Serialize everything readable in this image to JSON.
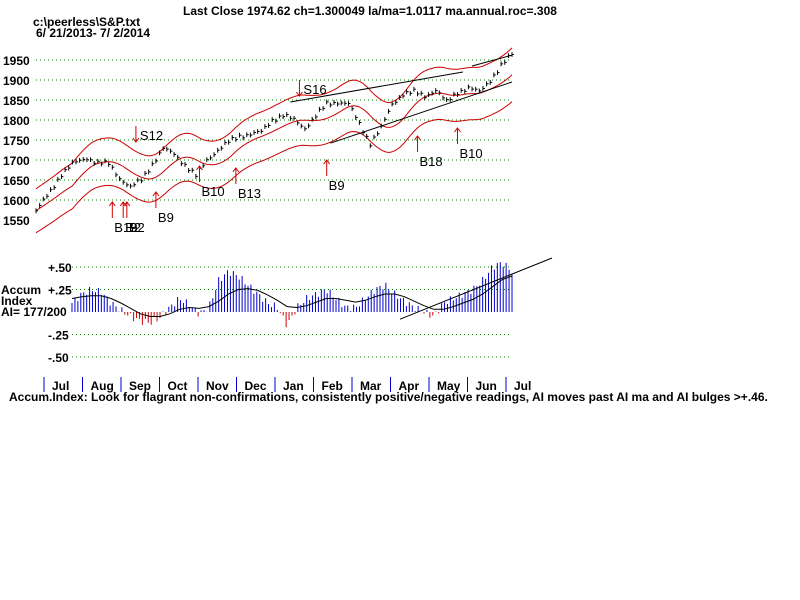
{
  "header": {
    "title": "Last Close 1974.62 ch=1.300049  la/ma=1.0117 ma.annual.roc=.308",
    "file": "c:\\peerless\\S&P.txt",
    "range": "6/ 21/2013- 7/ 2/2014"
  },
  "colors": {
    "price": "#000000",
    "bands": "#cc0000",
    "signal": "#cc0000",
    "ai_bars": "#0000cc",
    "ai_negative": "#cc0000",
    "grid": "#008000"
  },
  "footnote": "Accum.Index: Look for flagrant non-confirmations, consistently positive/negative readings, AI moves past AI ma and AI bulges >+.46.",
  "chart_data": [
    {
      "type": "line",
      "name": "price",
      "y_ticks": [
        "1950",
        "1900",
        "1850",
        "1800",
        "1750",
        "1700",
        "1650",
        "1600",
        "1550"
      ],
      "ylim": [
        1550,
        1980
      ],
      "x": [
        0,
        8,
        14,
        20,
        28,
        34,
        40,
        46,
        52,
        58,
        64,
        70,
        76,
        82,
        88,
        94,
        100,
        106,
        112,
        118,
        124,
        130,
        136,
        142,
        148,
        154,
        160,
        166,
        172,
        178,
        184,
        190,
        196,
        202,
        208,
        214,
        220,
        226,
        232,
        238,
        244,
        250,
        256,
        262
      ],
      "close": [
        1573,
        1622,
        1665,
        1690,
        1705,
        1693,
        1690,
        1655,
        1632,
        1650,
        1690,
        1728,
        1715,
        1688,
        1660,
        1700,
        1725,
        1745,
        1760,
        1765,
        1770,
        1800,
        1812,
        1800,
        1780,
        1810,
        1840,
        1845,
        1840,
        1790,
        1742,
        1780,
        1840,
        1865,
        1870,
        1860,
        1875,
        1845,
        1870,
        1880,
        1870,
        1900,
        1935,
        1965
      ],
      "signals": [
        {
          "label": "S12",
          "x": 55,
          "price": 1745,
          "kind": "sell"
        },
        {
          "label": "S16",
          "x": 145,
          "price": 1860,
          "kind": "sell"
        },
        {
          "label": "B19",
          "x": 42,
          "price": 1595,
          "kind": "buy"
        },
        {
          "label": "B2",
          "x": 48,
          "price": 1595,
          "kind": "buy"
        },
        {
          "label": "B2",
          "x": 50,
          "price": 1595,
          "kind": "buy"
        },
        {
          "label": "B9",
          "x": 66,
          "price": 1620,
          "kind": "buy"
        },
        {
          "label": "B10",
          "x": 90,
          "price": 1685,
          "kind": "buy"
        },
        {
          "label": "B13",
          "x": 110,
          "price": 1680,
          "kind": "buy"
        },
        {
          "label": "B9",
          "x": 160,
          "price": 1700,
          "kind": "buy"
        },
        {
          "label": "B18",
          "x": 210,
          "price": 1760,
          "kind": "buy"
        },
        {
          "label": "B10",
          "x": 232,
          "price": 1780,
          "kind": "buy"
        }
      ]
    },
    {
      "type": "bar",
      "name": "Accum Index",
      "panel_label": [
        "Accum",
        "Index",
        "AI= 177/200"
      ],
      "y_ticks": [
        "+.50",
        "+.25",
        "-.25",
        "-.50"
      ],
      "ylim": [
        -0.55,
        0.55
      ],
      "months": [
        "Jul",
        "Aug",
        "Sep",
        "Oct",
        "Nov",
        "Dec",
        "Jan",
        "Feb",
        "Mar",
        "Apr",
        "May",
        "Jun",
        "Jul"
      ],
      "values": [
        0.1,
        0.2,
        0.25,
        0.22,
        0.1,
        0.02,
        -0.05,
        -0.1,
        -0.12,
        -0.06,
        0.05,
        0.15,
        0.08,
        -0.02,
        0.05,
        0.35,
        0.45,
        0.4,
        0.3,
        0.2,
        0.1,
        0.05,
        -0.15,
        0.05,
        0.15,
        0.2,
        0.25,
        0.15,
        0.05,
        0.05,
        0.15,
        0.25,
        0.3,
        0.2,
        0.12,
        0.05,
        0.0,
        -0.05,
        0.1,
        0.15,
        0.2,
        0.25,
        0.35,
        0.5,
        0.55,
        0.45
      ],
      "ma": [
        0.15,
        0.17,
        0.18,
        0.18,
        0.15,
        0.1,
        0.04,
        -0.02,
        -0.05,
        -0.05,
        -0.02,
        0.03,
        0.05,
        0.04,
        0.06,
        0.12,
        0.2,
        0.25,
        0.26,
        0.24,
        0.19,
        0.13,
        0.06,
        0.05,
        0.07,
        0.11,
        0.15,
        0.15,
        0.13,
        0.11,
        0.13,
        0.17,
        0.2,
        0.2,
        0.17,
        0.12,
        0.07,
        0.03,
        0.03,
        0.06,
        0.1,
        0.14,
        0.2,
        0.28,
        0.36,
        0.4
      ]
    }
  ]
}
